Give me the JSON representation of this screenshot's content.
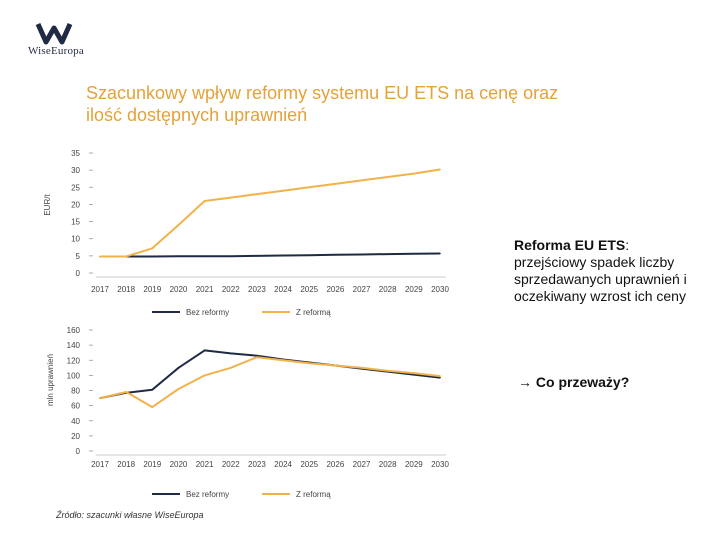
{
  "header": {
    "logo_text": "WiseEuropa",
    "title_line1": "Szacunkowy wpływ reformy systemu EU ETS na cenę oraz",
    "title_line2": "ilość dostępnych uprawnień"
  },
  "colors": {
    "navy": "#1f2a44",
    "orange": "#f2b24a",
    "title": "#e4a23a"
  },
  "note": {
    "heading": "Reforma EU ETS",
    "colon": ":",
    "body": "przejściowy spadek liczby sprzedawanych uprawnień i oczekiwany wzrost ich ceny",
    "arrow": "→",
    "question": "Co przeważy?"
  },
  "source": "Źródło: szacunki własne WiseEuropa",
  "chart_data": [
    {
      "type": "line",
      "ylabel": "EUR/t",
      "ylim": [
        0,
        35
      ],
      "yticks": [
        0,
        5,
        10,
        15,
        20,
        25,
        30,
        35
      ],
      "x": [
        "2017",
        "2018",
        "2019",
        "2020",
        "2021",
        "2022",
        "2023",
        "2024",
        "2025",
        "2026",
        "2027",
        "2028",
        "2029",
        "2030"
      ],
      "series": [
        {
          "name": "Bez reformy",
          "color": "#1f2a44",
          "values": [
            4.8,
            4.8,
            4.8,
            4.9,
            4.9,
            4.9,
            5.0,
            5.1,
            5.2,
            5.3,
            5.4,
            5.5,
            5.6,
            5.7
          ]
        },
        {
          "name": "Z reformą",
          "color": "#f2b24a",
          "values": [
            4.8,
            4.8,
            7.2,
            14.0,
            21.0,
            22.0,
            23.0,
            24.0,
            25.0,
            26.0,
            27.0,
            28.0,
            29.0,
            30.2
          ]
        }
      ],
      "legend": "bottom"
    },
    {
      "type": "line",
      "ylabel": "mln uprawnień",
      "ylim": [
        0,
        160
      ],
      "yticks": [
        0,
        20,
        40,
        60,
        80,
        100,
        120,
        140,
        160
      ],
      "x": [
        "2017",
        "2018",
        "2019",
        "2020",
        "2021",
        "2022",
        "2023",
        "2024",
        "2025",
        "2026",
        "2027",
        "2028",
        "2029",
        "2030"
      ],
      "series": [
        {
          "name": "Bez reformy",
          "color": "#1f2a44",
          "values": [
            70,
            77,
            81,
            110,
            133,
            129,
            126,
            121,
            117,
            113,
            109,
            105,
            101,
            97
          ]
        },
        {
          "name": "Z reformą",
          "color": "#f2b24a",
          "values": [
            70,
            78,
            58,
            82,
            100,
            110,
            124,
            120,
            116,
            113,
            110,
            106,
            103,
            99
          ]
        }
      ],
      "legend": "bottom"
    }
  ]
}
